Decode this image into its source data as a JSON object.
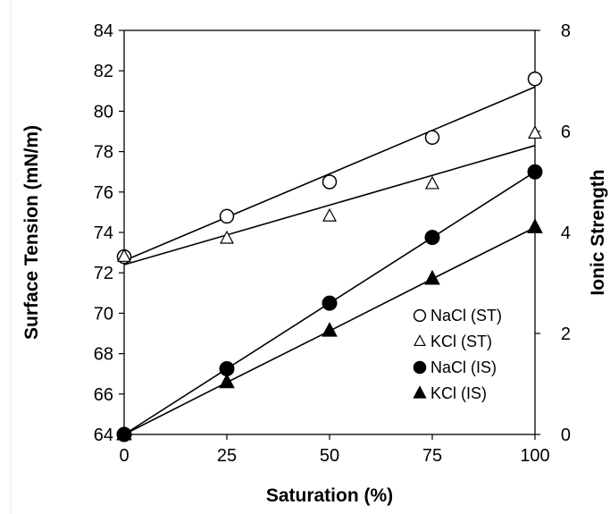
{
  "chart_data": {
    "type": "scatter",
    "xlabel": "Saturation (%)",
    "ylabel": "Surface Tension (mN/m)",
    "y2label": "Ionic Strength",
    "xlim": [
      0,
      100
    ],
    "ylim": [
      64,
      84
    ],
    "y2lim": [
      0,
      8
    ],
    "xticks": [
      "0",
      "25",
      "50",
      "75",
      "100"
    ],
    "yticks": [
      "64",
      "66",
      "68",
      "70",
      "72",
      "74",
      "76",
      "78",
      "80",
      "82",
      "84"
    ],
    "y2ticks": [
      "0",
      "2",
      "4",
      "6",
      "8"
    ],
    "grid": false,
    "legend_position": "bottom-right",
    "series": [
      {
        "name": "NaCl (ST)",
        "axis": "left",
        "marker": "circle-open",
        "x": [
          0,
          25,
          50,
          75,
          100
        ],
        "y": [
          72.8,
          74.8,
          76.5,
          78.7,
          81.6
        ],
        "trendline": {
          "x": [
            0,
            100
          ],
          "y": [
            72.6,
            81.2
          ]
        }
      },
      {
        "name": "KCl (ST)",
        "axis": "left",
        "marker": "triangle-open",
        "x": [
          0,
          25,
          50,
          75,
          100
        ],
        "y": [
          72.8,
          73.7,
          74.8,
          76.4,
          78.9
        ],
        "trendline": {
          "x": [
            0,
            100
          ],
          "y": [
            72.4,
            78.3
          ]
        }
      },
      {
        "name": "NaCl (IS)",
        "axis": "right",
        "marker": "circle-filled",
        "x": [
          0,
          25,
          50,
          75,
          100
        ],
        "y": [
          0,
          1.3,
          2.6,
          3.9,
          5.2
        ],
        "connect": true
      },
      {
        "name": "KCl (IS)",
        "axis": "right",
        "marker": "triangle-filled",
        "x": [
          0,
          25,
          50,
          75,
          100
        ],
        "y": [
          0,
          1.03,
          2.05,
          3.08,
          4.1
        ],
        "connect": true
      }
    ]
  }
}
